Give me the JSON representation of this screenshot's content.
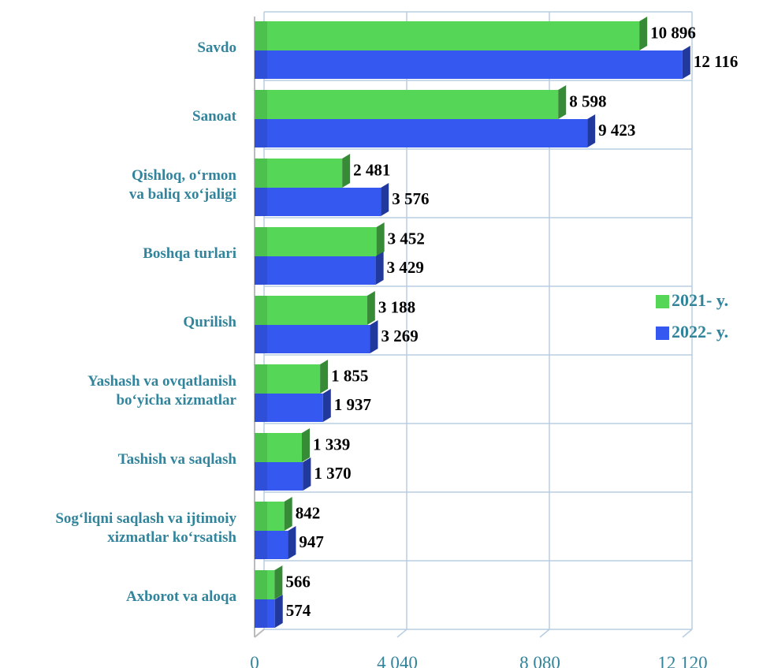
{
  "chart_data": {
    "type": "bar",
    "orientation": "horizontal",
    "categories": [
      "Savdo",
      "Sanoat",
      "Qishloq, o‘rmon\nva baliq xo‘jaligi",
      "Boshqa turlari",
      "Qurilish",
      "Yashash va ovqatlanish\nbo‘yicha xizmatlar",
      "Tashish va saqlash",
      "Sog‘liqni saqlash va ijtimoiy\nxizmatlar ko‘rsatish",
      "Axborot va aloqa"
    ],
    "series": [
      {
        "name": "2021- y.",
        "color": "#56d656",
        "values": [
          10896,
          8598,
          2481,
          3452,
          3188,
          1855,
          1339,
          842,
          566
        ],
        "value_labels": [
          "10 896",
          "8 598",
          "2 481",
          "3 452",
          "3 188",
          "1 855",
          "1 339",
          "842",
          "566"
        ]
      },
      {
        "name": "2022- y.",
        "color": "#3458f0",
        "values": [
          12116,
          9423,
          3576,
          3429,
          3269,
          1937,
          1370,
          947,
          574
        ],
        "value_labels": [
          "12 116",
          "9 423",
          "3 576",
          "3 429",
          "3 269",
          "1 937",
          "1 370",
          "947",
          "574"
        ]
      }
    ],
    "xlim": [
      0,
      12120
    ],
    "xticks": [
      0,
      {
        "value": 4040,
        "label": "4 040"
      },
      {
        "value": 8080,
        "label": "8 080"
      },
      {
        "value": 12120,
        "label": "12 120"
      }
    ],
    "grid": true,
    "legend": "right"
  }
}
